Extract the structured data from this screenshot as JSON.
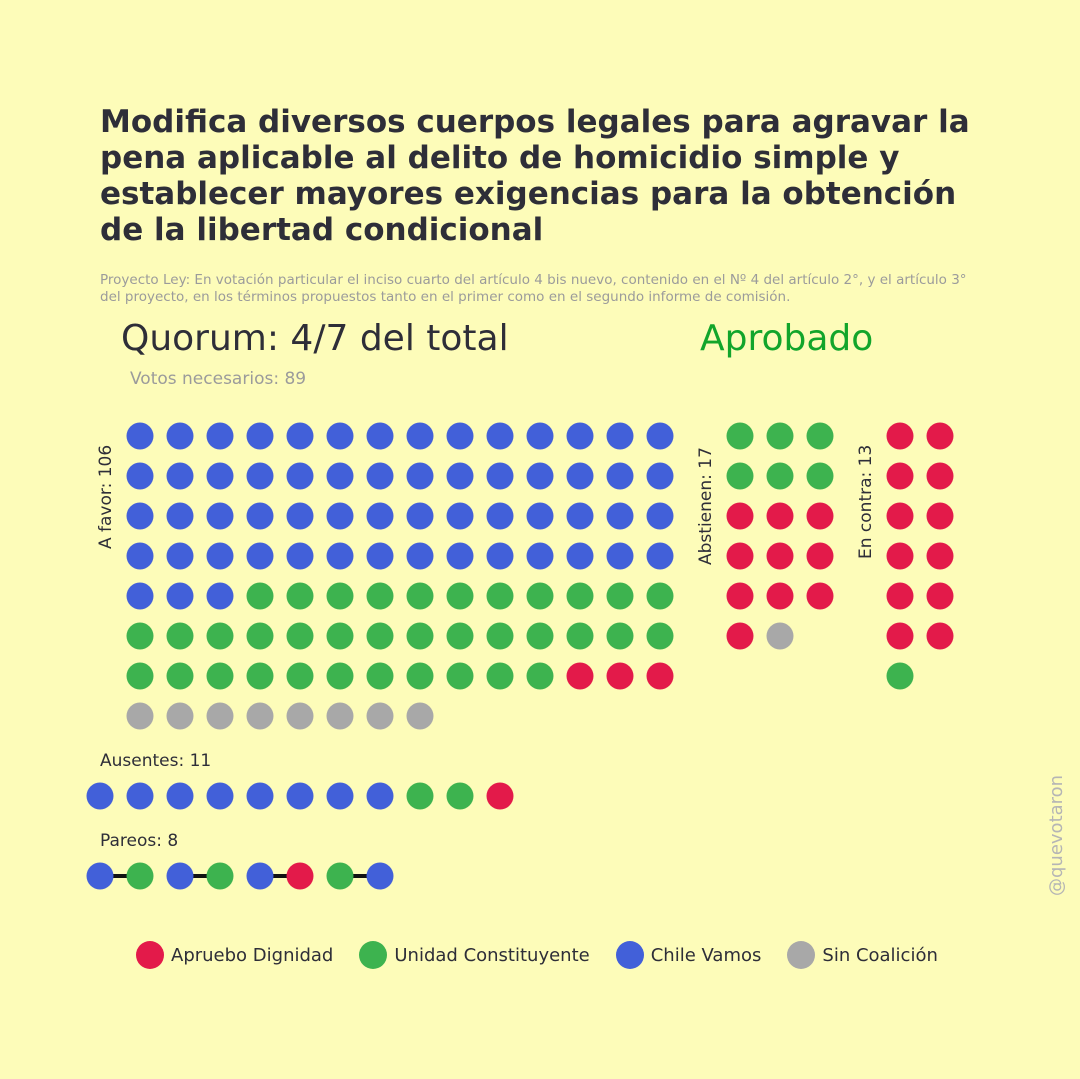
{
  "title": "Modifica diversos cuerpos legales para agravar la pena aplicable al delito de homicidio simple y establecer mayores exigencias para la obtención de la libertad condicional",
  "subtitle": "Proyecto Ley: En votación particular el inciso cuarto del artículo 4 bis nuevo, contenido en el Nº 4 del artículo 2°, y el artículo 3° del proyecto, en los términos propuestos tanto en el primer como en el segundo informe de comisión.",
  "quorum": "Quorum: 4/7 del total",
  "needed": "Votos necesarios: 89",
  "result": "Aprobado",
  "result_color": "#12a52b",
  "watermark": "@quevotaron",
  "colors": {
    "apruebo": "#e31a4a",
    "unidad": "#3db34f",
    "chile": "#4260d9",
    "sin": "#a8a8a8"
  },
  "legend": [
    {
      "key": "apruebo",
      "label": "Apruebo Dignidad"
    },
    {
      "key": "unidad",
      "label": "Unidad Constituyente"
    },
    {
      "key": "chile",
      "label": "Chile Vamos"
    },
    {
      "key": "sin",
      "label": "Sin Coalición"
    }
  ],
  "chart_data": {
    "type": "dot-grid",
    "groups": [
      {
        "id": "favor",
        "label": "A favor: 106",
        "total": 106,
        "composition": [
          {
            "coalition": "chile",
            "count": 59
          },
          {
            "coalition": "unidad",
            "count": 36
          },
          {
            "coalition": "apruebo",
            "count": 3
          },
          {
            "coalition": "sin",
            "count": 8
          }
        ]
      },
      {
        "id": "abst",
        "label": "Abstienen: 17",
        "total": 17,
        "composition": [
          {
            "coalition": "unidad",
            "count": 6
          },
          {
            "coalition": "apruebo",
            "count": 10
          },
          {
            "coalition": "sin",
            "count": 1
          }
        ]
      },
      {
        "id": "contra",
        "label": "En contra: 13",
        "total": 13,
        "composition": [
          {
            "coalition": "apruebo",
            "count": 12
          },
          {
            "coalition": "unidad",
            "count": 1
          }
        ]
      },
      {
        "id": "ausentes",
        "label": "Ausentes: 11",
        "total": 11,
        "composition": [
          {
            "coalition": "chile",
            "count": 8
          },
          {
            "coalition": "unidad",
            "count": 2
          },
          {
            "coalition": "apruebo",
            "count": 1
          }
        ]
      },
      {
        "id": "pareos",
        "label": "Pareos: 8",
        "total": 8,
        "pairs": [
          [
            "chile",
            "unidad"
          ],
          [
            "chile",
            "unidad"
          ],
          [
            "chile",
            "apruebo"
          ],
          [
            "unidad",
            "chile"
          ]
        ]
      }
    ]
  }
}
